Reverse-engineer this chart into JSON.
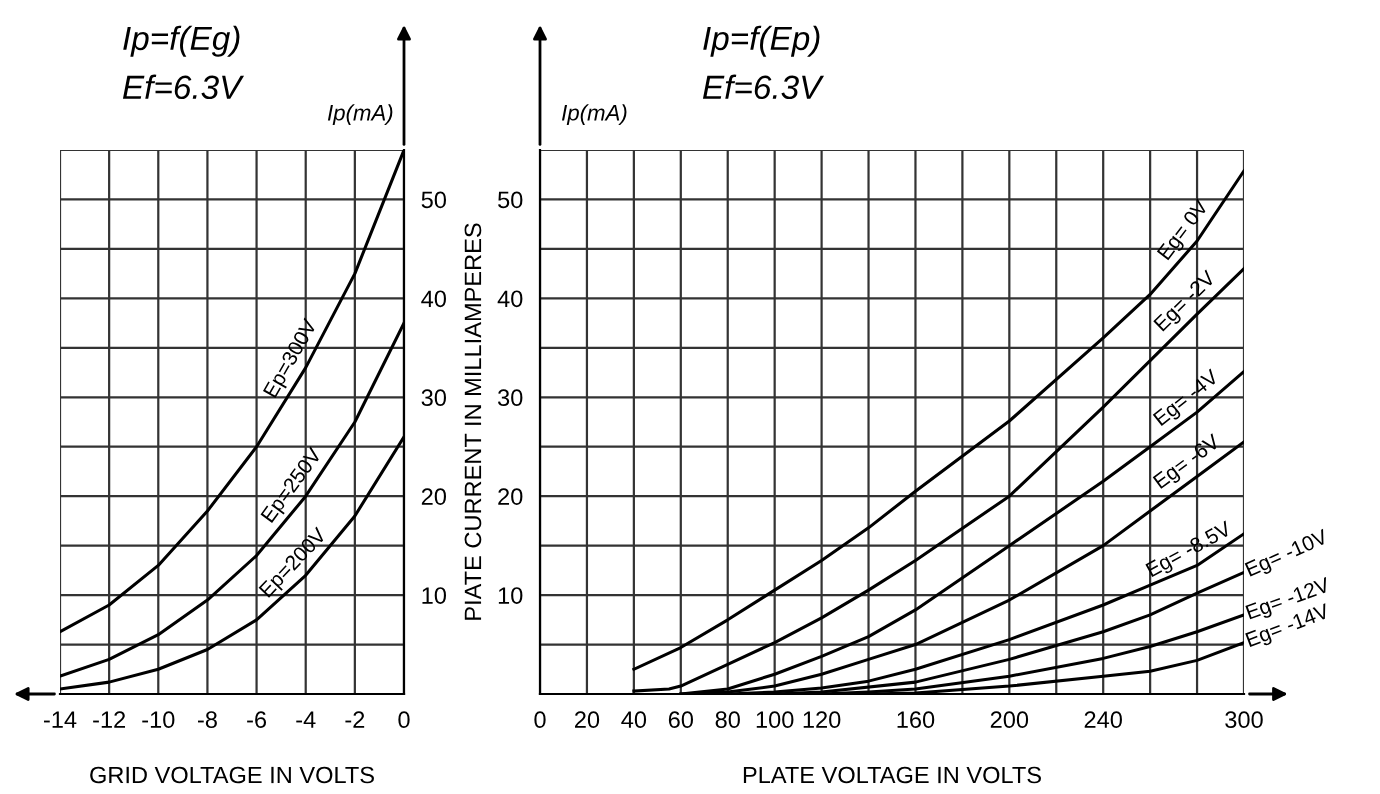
{
  "chart_data": [
    {
      "type": "line",
      "title": "Ip=f(Eg)",
      "subtitle": "Ef=6.3V",
      "xlabel": "GRID VOLTAGE IN VOLTS",
      "annotations": [
        "Ip(mA)"
      ],
      "x": [
        -14,
        -12,
        -10,
        -8,
        -6,
        -4,
        -2,
        0
      ],
      "series": [
        {
          "name": "Ep=300V",
          "color": "#000000",
          "values": [
            6.3,
            9,
            13,
            18.5,
            25,
            33,
            42.5,
            55
          ]
        },
        {
          "name": "Ep=250V",
          "color": "#000000",
          "values": [
            1.8,
            3.5,
            6,
            9.5,
            14,
            20,
            27.5,
            37.5
          ]
        },
        {
          "name": "Ep=200V",
          "color": "#000000",
          "values": [
            0.5,
            1.2,
            2.5,
            4.5,
            7.5,
            12,
            18,
            26
          ]
        }
      ],
      "xlim": [
        -14,
        0
      ],
      "ylim": [
        0,
        55
      ],
      "xticks": [
        -14,
        -12,
        -10,
        -8,
        -6,
        -4,
        -2,
        0
      ],
      "yticks": [
        {
          "value": 5,
          "label": null
        },
        10,
        {
          "value": 15,
          "label": null
        },
        20,
        {
          "value": 25,
          "label": null
        },
        30,
        {
          "value": 35,
          "label": null
        },
        40,
        {
          "value": 45,
          "label": null
        },
        50,
        {
          "value": 55,
          "label": null
        }
      ],
      "grid": true,
      "legend": false,
      "marker": "none",
      "line_style": "solid"
    },
    {
      "type": "line",
      "title": "Ip=f(Ep)",
      "subtitle": "Ef=6.3V",
      "xlabel": "PLATE VOLTAGE IN VOLTS",
      "ylabel": "PIATE CURRENT IN MILLIAMPERES",
      "annotations": [
        "Ip(mA)"
      ],
      "series": [
        {
          "name": "Eg= 0V",
          "color": "#000000",
          "x": [
            40,
            60,
            80,
            100,
            120,
            140,
            160,
            200,
            240,
            260,
            280,
            300
          ],
          "values": [
            2.5,
            4.7,
            7.5,
            10.5,
            13.5,
            16.8,
            20.5,
            27.6,
            36,
            40.4,
            45.8,
            52.9
          ]
        },
        {
          "name": "Eg= -2V",
          "color": "#000000",
          "x": [
            40,
            55,
            60,
            80,
            100,
            120,
            140,
            160,
            200,
            240,
            260,
            280,
            300
          ],
          "values": [
            0.3,
            0.5,
            0.8,
            3,
            5.2,
            7.7,
            10.5,
            13.5,
            20,
            29,
            33.7,
            38.4,
            43
          ]
        },
        {
          "name": "Eg= -4V",
          "color": "#000000",
          "x": [
            60,
            80,
            100,
            120,
            140,
            160,
            200,
            240,
            260,
            280,
            300
          ],
          "values": [
            0,
            0.5,
            2,
            3.8,
            5.8,
            8.5,
            15,
            21.5,
            25,
            28.5,
            32.6
          ]
        },
        {
          "name": "Eg= -6V",
          "color": "#000000",
          "x": [
            60,
            80,
            100,
            120,
            140,
            160,
            200,
            240,
            260,
            280,
            300
          ],
          "values": [
            0,
            0.2,
            0.8,
            2,
            3.5,
            5,
            9.5,
            15,
            18.5,
            22,
            25.5
          ]
        },
        {
          "name": "Eg= -8.5V",
          "color": "#000000",
          "x": [
            80,
            100,
            120,
            140,
            160,
            200,
            240,
            260,
            280,
            300
          ],
          "values": [
            0,
            0.2,
            0.6,
            1.3,
            2.5,
            5.5,
            9,
            11,
            13,
            16.2
          ]
        },
        {
          "name": "Eg= -10V",
          "color": "#000000",
          "x": [
            100,
            120,
            160,
            200,
            240,
            260,
            280,
            300
          ],
          "values": [
            0,
            0.2,
            1.2,
            3.5,
            6.3,
            8,
            10.2,
            12.3
          ]
        },
        {
          "name": "Eg= -12V",
          "color": "#000000",
          "x": [
            120,
            140,
            160,
            200,
            240,
            260,
            280,
            300
          ],
          "values": [
            0,
            0.2,
            0.5,
            1.8,
            3.6,
            4.8,
            6.3,
            8
          ]
        },
        {
          "name": "Eg= -14V",
          "color": "#000000",
          "x": [
            140,
            160,
            200,
            240,
            260,
            280,
            300
          ],
          "values": [
            0,
            0.1,
            0.8,
            1.8,
            2.3,
            3.4,
            5.2
          ]
        }
      ],
      "xlim": [
        0,
        300
      ],
      "ylim": [
        0,
        55
      ],
      "xticks": [
        0,
        20,
        40,
        60,
        80,
        100,
        120,
        {
          "value": 140,
          "label": null
        },
        160,
        {
          "value": 180,
          "label": null
        },
        200,
        {
          "value": 220,
          "label": null
        },
        240,
        {
          "value": 260,
          "label": null
        },
        {
          "value": 280,
          "label": null
        },
        300
      ],
      "yticks": [
        {
          "value": 5,
          "label": null
        },
        10,
        {
          "value": 15,
          "label": null
        },
        20,
        {
          "value": 25,
          "label": null
        },
        30,
        {
          "value": 35,
          "label": null
        },
        40,
        {
          "value": 45,
          "label": null
        },
        50,
        {
          "value": 55,
          "label": null
        }
      ],
      "grid": true,
      "legend": false,
      "marker": "none",
      "line_style": "solid"
    }
  ]
}
